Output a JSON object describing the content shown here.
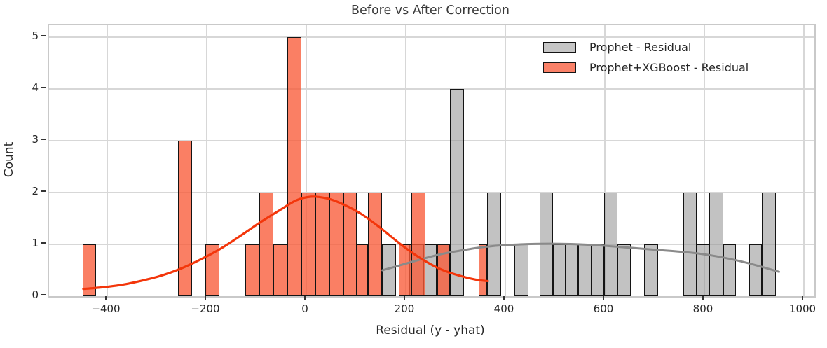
{
  "title": "Before vs After Correction",
  "axes": {
    "xlabel": "Residual (y - yhat)",
    "ylabel": "Count"
  },
  "legend": {
    "position": "upper right",
    "items": [
      {
        "label": "Prophet - Residual",
        "swatch_color": "#c6c6c6"
      },
      {
        "label": "Prophet+XGBoost - Residual",
        "swatch_color": "#fa8168"
      }
    ]
  },
  "chart_data": {
    "type": "bar",
    "subtype": "histogram-with-kde-overlay",
    "title": "Before vs After Correction",
    "xlabel": "Residual (y - yhat)",
    "ylabel": "Count",
    "xlim": [
      -517,
      1021
    ],
    "ylim": [
      0,
      5.23
    ],
    "grid": true,
    "legend_position": "upper right",
    "x_ticks": [
      -400,
      -200,
      0,
      200,
      400,
      600,
      800,
      1000
    ],
    "x_tick_labels": [
      "−400",
      "−200",
      "0",
      "200",
      "400",
      "600",
      "800",
      "1000"
    ],
    "y_ticks": [
      0,
      1,
      2,
      3,
      4,
      5
    ],
    "y_tick_labels": [
      "0",
      "1",
      "2",
      "3",
      "4",
      "5"
    ],
    "series": [
      {
        "name": "Prophet - Residual",
        "bar_fill": "rgba(150,150,150,0.58)",
        "edge_color": "#141414",
        "kde_color": "#8a8a8a",
        "bars": [
          [
            152,
            180,
            1
          ],
          [
            207,
            235,
            1
          ],
          [
            235,
            262,
            1
          ],
          [
            262,
            289,
            1
          ],
          [
            289,
            317,
            4
          ],
          [
            364,
            392,
            2
          ],
          [
            418,
            446,
            1
          ],
          [
            469,
            496,
            2
          ],
          [
            496,
            521,
            1
          ],
          [
            521,
            546,
            1
          ],
          [
            546,
            573,
            1
          ],
          [
            573,
            598,
            1
          ],
          [
            598,
            626,
            2
          ],
          [
            626,
            652,
            1
          ],
          [
            679,
            707,
            1
          ],
          [
            758,
            784,
            2
          ],
          [
            784,
            810,
            1
          ],
          [
            810,
            838,
            2
          ],
          [
            838,
            863,
            1
          ],
          [
            890,
            915,
            1
          ],
          [
            915,
            943,
            2
          ]
        ],
        "kde_points": [
          [
            153,
            0.5
          ],
          [
            190,
            0.6
          ],
          [
            230,
            0.71
          ],
          [
            270,
            0.81
          ],
          [
            310,
            0.88
          ],
          [
            350,
            0.94
          ],
          [
            390,
            0.98
          ],
          [
            430,
            1.0
          ],
          [
            470,
            1.01
          ],
          [
            510,
            1.01
          ],
          [
            550,
            1.0
          ],
          [
            590,
            0.98
          ],
          [
            630,
            0.95
          ],
          [
            670,
            0.92
          ],
          [
            710,
            0.89
          ],
          [
            750,
            0.86
          ],
          [
            790,
            0.82
          ],
          [
            830,
            0.76
          ],
          [
            870,
            0.68
          ],
          [
            910,
            0.58
          ],
          [
            950,
            0.47
          ]
        ]
      },
      {
        "name": "Prophet+XGBoost - Residual",
        "bar_fill": "rgba(249,91,57,0.78)",
        "edge_color": "#141414",
        "kde_color": "#f3360b",
        "bars": [
          [
            -450,
            -422,
            1
          ],
          [
            -258,
            -230,
            3
          ],
          [
            -203,
            -175,
            1
          ],
          [
            -122,
            -94,
            1
          ],
          [
            -94,
            -66,
            2
          ],
          [
            -66,
            -38,
            1
          ],
          [
            -38,
            -10,
            5
          ],
          [
            -10,
            18,
            2
          ],
          [
            18,
            46,
            2
          ],
          [
            46,
            74,
            2
          ],
          [
            74,
            101,
            2
          ],
          [
            101,
            124,
            1
          ],
          [
            124,
            152,
            2
          ],
          [
            186,
            211,
            1
          ],
          [
            211,
            239,
            2
          ],
          [
            264,
            289,
            1
          ],
          [
            346,
            364,
            1
          ]
        ],
        "kde_points": [
          [
            -448,
            0.14
          ],
          [
            -410,
            0.17
          ],
          [
            -370,
            0.22
          ],
          [
            -330,
            0.3
          ],
          [
            -290,
            0.4
          ],
          [
            -250,
            0.54
          ],
          [
            -210,
            0.72
          ],
          [
            -170,
            0.93
          ],
          [
            -130,
            1.18
          ],
          [
            -90,
            1.44
          ],
          [
            -50,
            1.68
          ],
          [
            -20,
            1.85
          ],
          [
            10,
            1.92
          ],
          [
            40,
            1.89
          ],
          [
            70,
            1.79
          ],
          [
            110,
            1.59
          ],
          [
            150,
            1.31
          ],
          [
            190,
            1.0
          ],
          [
            230,
            0.73
          ],
          [
            270,
            0.52
          ],
          [
            310,
            0.39
          ],
          [
            340,
            0.32
          ],
          [
            365,
            0.29
          ]
        ]
      }
    ]
  },
  "style": {
    "grid_color": "#d7d7d7",
    "spine_color": "#c9c9c9",
    "tick_color": "#333333",
    "text_color": "#262626",
    "background": "#ffffff"
  }
}
